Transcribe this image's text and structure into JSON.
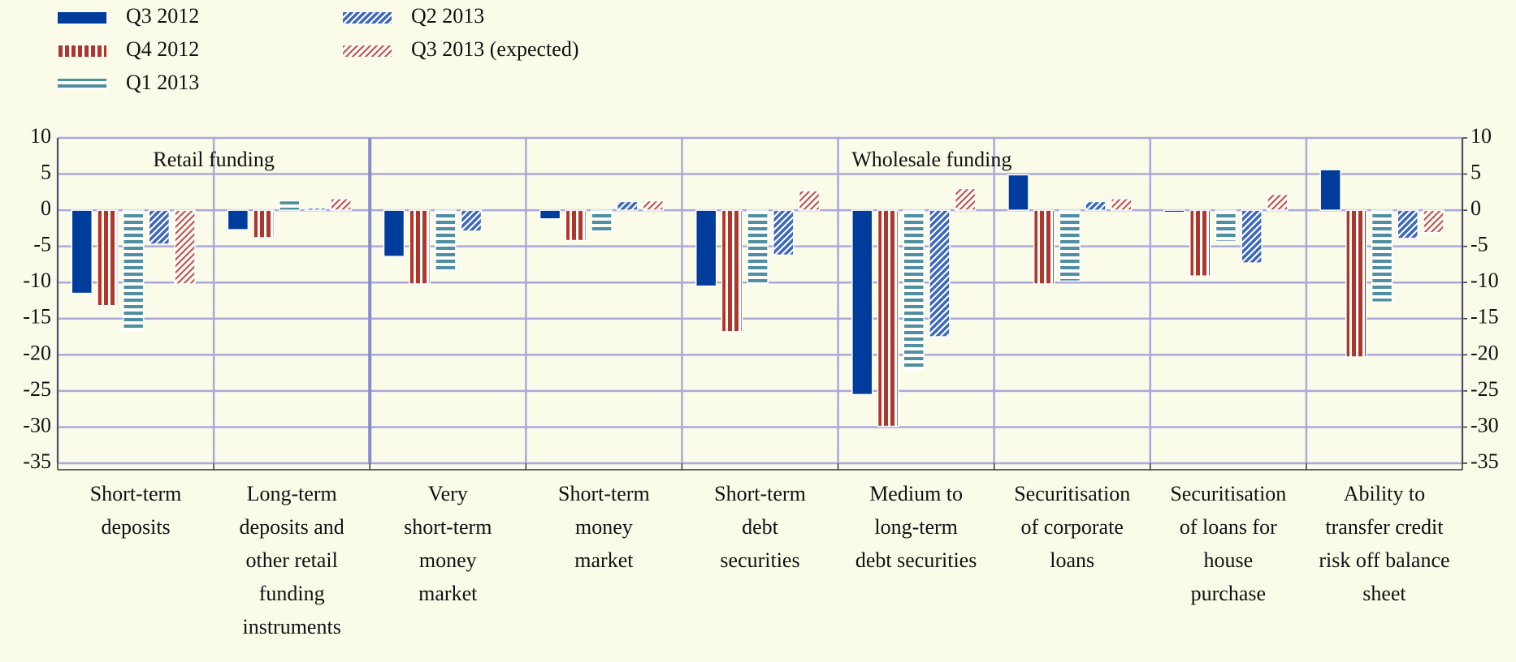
{
  "chart_data": {
    "type": "bar",
    "categories": [
      [
        "Short-term",
        "deposits"
      ],
      [
        "Long-term",
        "deposits and",
        "other retail",
        "funding",
        "instruments"
      ],
      [
        "Very",
        "short-term",
        "money",
        "market"
      ],
      [
        "Short-term",
        "money",
        "market"
      ],
      [
        "Short-term",
        "debt",
        "securities"
      ],
      [
        "Medium to",
        "long-term",
        "debt securities"
      ],
      [
        "Securitisation",
        "of corporate",
        "loans"
      ],
      [
        "Securitisation",
        "of loans for",
        "house",
        "purchase"
      ],
      [
        "Ability to",
        "transfer credit",
        "risk off balance",
        "sheet"
      ]
    ],
    "series": [
      {
        "name": "Q3 2012",
        "color": "#003c9c",
        "pattern": "solid",
        "values": [
          -11.5,
          -2.7,
          -6.4,
          -1.2,
          -10.5,
          -25.5,
          4.9,
          -0.3,
          5.6
        ]
      },
      {
        "name": "Q4 2012",
        "color": "#b0362a",
        "pattern": "vertical",
        "values": [
          -13.2,
          -3.8,
          -10.2,
          -4.2,
          -16.8,
          -29.9,
          -10.2,
          -9.1,
          -20.3
        ]
      },
      {
        "name": "Q1 2013",
        "color": "#4f8fa0",
        "pattern": "horizontal",
        "values": [
          -16.7,
          1.3,
          -8.3,
          -3.0,
          -10.2,
          -22.1,
          -9.8,
          -4.3,
          -12.7
        ]
      },
      {
        "name": "Q2 2013",
        "color": "#3a66c0",
        "pattern": "diagonal",
        "values": [
          -4.7,
          0.3,
          -2.9,
          1.2,
          -6.2,
          -17.5,
          1.2,
          -7.3,
          -3.9
        ]
      },
      {
        "name": "Q3 2013 (expected)",
        "color": "#c4564a",
        "pattern": "diagonal-light",
        "values": [
          -10.2,
          1.6,
          0,
          1.3,
          2.7,
          3.0,
          1.6,
          2.2,
          -3.1
        ]
      }
    ],
    "annotations": [
      "Retail funding",
      "Wholesale funding"
    ],
    "ylim": [
      -35,
      10
    ],
    "yticks": [
      -35,
      -30,
      -25,
      -20,
      -15,
      -10,
      -5,
      0,
      5,
      10
    ],
    "y2lim": [
      -35,
      10
    ],
    "y2ticks": [
      -35,
      -30,
      -25,
      -20,
      -15,
      -10,
      -5,
      0,
      5,
      10
    ],
    "grid": true
  }
}
